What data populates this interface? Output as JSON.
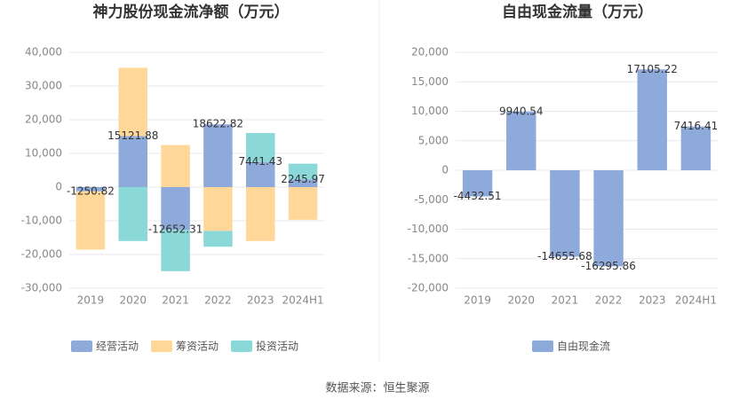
{
  "chart_data": [
    {
      "type": "stacked_bar",
      "title": "神力股份现金流净额（万元）",
      "categories": [
        "2019",
        "2020",
        "2021",
        "2022",
        "2023",
        "2024H1"
      ],
      "series": [
        {
          "name": "经营活动",
          "color": "#8eaadb",
          "values": [
            -1250.82,
            15121.88,
            -12652.31,
            18622.82,
            7441.43,
            2245.97
          ],
          "labels": true
        },
        {
          "name": "筹资活动",
          "color": "#ffd899",
          "values": [
            -17300,
            20300,
            12500,
            -13000,
            -16000,
            -9700
          ]
        },
        {
          "name": "投资活动",
          "color": "#8ad8d8",
          "values": [
            0,
            -16000,
            -12300,
            -4700,
            8600,
            4700
          ]
        }
      ],
      "ylim": [
        -30000,
        40000
      ],
      "yticks": [
        {
          "value": -30000,
          "label": "-30,000"
        },
        {
          "value": -20000,
          "label": "-20,000"
        },
        {
          "value": -10000,
          "label": "-10,000"
        },
        0,
        {
          "value": 10000,
          "label": "10,000"
        },
        {
          "value": 20000,
          "label": "20,000"
        },
        {
          "value": 30000,
          "label": "30,000"
        },
        {
          "value": 40000,
          "label": "40,000"
        }
      ],
      "grid": true
    },
    {
      "type": "bar",
      "title": "自由现金流量（万元）",
      "categories": [
        "2019",
        "2020",
        "2021",
        "2022",
        "2023",
        "2024H1"
      ],
      "series": [
        {
          "name": "自由现金流",
          "color": "#8eaadb",
          "values": [
            -4432.51,
            9940.54,
            -14655.68,
            -16295.86,
            17105.22,
            7416.41
          ],
          "labels": true
        }
      ],
      "ylim": [
        -20000,
        20000
      ],
      "yticks": [
        {
          "value": -20000,
          "label": "-20,000"
        },
        {
          "value": -15000,
          "label": "-15,000"
        },
        {
          "value": -10000,
          "label": "-10,000"
        },
        {
          "value": -5000,
          "label": "-5,000"
        },
        0,
        {
          "value": 5000,
          "label": "5,000"
        },
        {
          "value": 10000,
          "label": "10,000"
        },
        {
          "value": 15000,
          "label": "15,000"
        },
        {
          "value": 20000,
          "label": "20,000"
        }
      ],
      "grid": true
    }
  ],
  "source": "数据来源：恒生聚源"
}
